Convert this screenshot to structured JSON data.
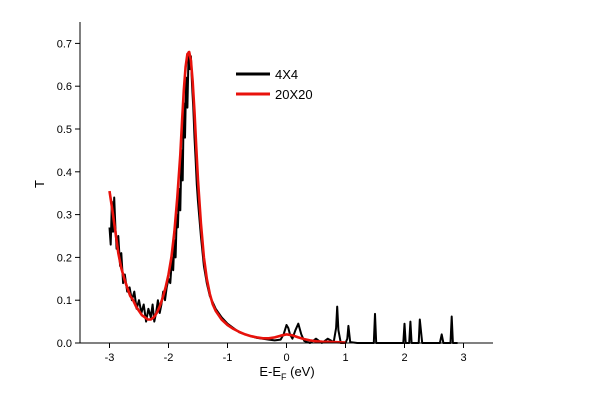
{
  "chart_data": {
    "type": "line",
    "title": "",
    "xlabel": {
      "main": "E-E",
      "sub": "F",
      "tail": " (eV)"
    },
    "ylabel": "T",
    "xlim": [
      -3.5,
      3.5
    ],
    "ylim": [
      0,
      0.75
    ],
    "xticks": [
      -3,
      -2,
      -1,
      0,
      1,
      2,
      3
    ],
    "yticks": [
      0.0,
      0.1,
      0.2,
      0.3,
      0.4,
      0.5,
      0.6,
      0.7
    ],
    "ytick_labels": [
      "0.0",
      "0.1",
      "0.2",
      "0.3",
      "0.4",
      "0.5",
      "0.6",
      "0.7"
    ],
    "grid": false,
    "legend_position": "top-right",
    "series": [
      {
        "name": "4X4",
        "color": "#000000",
        "x": [
          -3.0,
          -2.98,
          -2.96,
          -2.94,
          -2.92,
          -2.9,
          -2.88,
          -2.85,
          -2.82,
          -2.8,
          -2.77,
          -2.74,
          -2.7,
          -2.66,
          -2.62,
          -2.58,
          -2.54,
          -2.5,
          -2.46,
          -2.42,
          -2.38,
          -2.34,
          -2.3,
          -2.27,
          -2.24,
          -2.21,
          -2.18,
          -2.15,
          -2.12,
          -2.09,
          -2.06,
          -2.03,
          -2.0,
          -1.97,
          -1.94,
          -1.92,
          -1.9,
          -1.88,
          -1.86,
          -1.84,
          -1.82,
          -1.8,
          -1.78,
          -1.76,
          -1.74,
          -1.72,
          -1.7,
          -1.68,
          -1.66,
          -1.64,
          -1.62,
          -1.6,
          -1.58,
          -1.56,
          -1.54,
          -1.52,
          -1.5,
          -1.45,
          -1.4,
          -1.35,
          -1.3,
          -1.2,
          -1.1,
          -1.0,
          -0.9,
          -0.8,
          -0.7,
          -0.6,
          -0.5,
          -0.4,
          -0.3,
          -0.2,
          -0.1,
          -0.05,
          0.0,
          0.03,
          0.06,
          0.1,
          0.15,
          0.2,
          0.25,
          0.3,
          0.35,
          0.4,
          0.5,
          0.6,
          0.7,
          0.8,
          0.84,
          0.86,
          0.88,
          0.92,
          1.0,
          1.03,
          1.05,
          1.08,
          1.2,
          1.3,
          1.4,
          1.48,
          1.5,
          1.52,
          1.6,
          1.7,
          1.8,
          1.9,
          1.98,
          2.0,
          2.02,
          2.08,
          2.1,
          2.12,
          2.15,
          2.2,
          2.24,
          2.26,
          2.3,
          2.4,
          2.5,
          2.6,
          2.63,
          2.66,
          2.7,
          2.78,
          2.8,
          2.82,
          2.88,
          2.9
        ],
        "y": [
          0.27,
          0.23,
          0.33,
          0.26,
          0.34,
          0.27,
          0.22,
          0.25,
          0.18,
          0.21,
          0.14,
          0.16,
          0.12,
          0.13,
          0.1,
          0.12,
          0.08,
          0.1,
          0.07,
          0.09,
          0.05,
          0.08,
          0.06,
          0.09,
          0.05,
          0.07,
          0.1,
          0.07,
          0.09,
          0.12,
          0.1,
          0.13,
          0.15,
          0.14,
          0.2,
          0.17,
          0.24,
          0.2,
          0.3,
          0.27,
          0.36,
          0.31,
          0.45,
          0.38,
          0.56,
          0.48,
          0.62,
          0.55,
          0.68,
          0.64,
          0.67,
          0.6,
          0.55,
          0.48,
          0.43,
          0.37,
          0.33,
          0.25,
          0.18,
          0.14,
          0.11,
          0.08,
          0.06,
          0.045,
          0.035,
          0.025,
          0.02,
          0.016,
          0.012,
          0.01,
          0.008,
          0.006,
          0.008,
          0.02,
          0.042,
          0.035,
          0.02,
          0.01,
          0.03,
          0.045,
          0.02,
          0.005,
          0.002,
          0.0,
          0.01,
          0.0,
          0.01,
          0.002,
          0.035,
          0.085,
          0.03,
          0.0,
          0.0,
          0.01,
          0.04,
          0.002,
          0.0,
          0.0,
          0.0,
          0.0,
          0.068,
          0.0,
          0.0,
          0.0,
          0.0,
          0.0,
          0.0,
          0.045,
          0.0,
          0.0,
          0.05,
          0.0,
          0.0,
          0.0,
          0.0,
          0.055,
          0.0,
          0.0,
          0.0,
          0.0,
          0.02,
          0.0,
          0.0,
          0.0,
          0.062,
          0.0,
          0.0,
          0.0
        ]
      },
      {
        "name": "20X20",
        "color": "#e8120c",
        "x": [
          -3.0,
          -2.95,
          -2.9,
          -2.85,
          -2.8,
          -2.75,
          -2.7,
          -2.65,
          -2.6,
          -2.55,
          -2.5,
          -2.45,
          -2.4,
          -2.35,
          -2.3,
          -2.25,
          -2.2,
          -2.15,
          -2.1,
          -2.05,
          -2.0,
          -1.95,
          -1.9,
          -1.85,
          -1.8,
          -1.77,
          -1.74,
          -1.71,
          -1.68,
          -1.65,
          -1.62,
          -1.59,
          -1.56,
          -1.53,
          -1.5,
          -1.45,
          -1.4,
          -1.35,
          -1.3,
          -1.25,
          -1.2,
          -1.1,
          -1.0,
          -0.9,
          -0.8,
          -0.7,
          -0.6,
          -0.5,
          -0.4,
          -0.3,
          -0.2,
          -0.1,
          0.0,
          0.1,
          0.2,
          0.3,
          0.4,
          0.5,
          0.6,
          0.8,
          1.0
        ],
        "y": [
          0.355,
          0.31,
          0.26,
          0.21,
          0.175,
          0.15,
          0.13,
          0.11,
          0.1,
          0.085,
          0.075,
          0.065,
          0.06,
          0.055,
          0.055,
          0.06,
          0.07,
          0.085,
          0.105,
          0.13,
          0.16,
          0.2,
          0.26,
          0.34,
          0.44,
          0.52,
          0.59,
          0.645,
          0.675,
          0.68,
          0.66,
          0.61,
          0.54,
          0.46,
          0.38,
          0.28,
          0.2,
          0.15,
          0.115,
          0.09,
          0.075,
          0.055,
          0.042,
          0.033,
          0.026,
          0.02,
          0.016,
          0.013,
          0.011,
          0.011,
          0.013,
          0.017,
          0.02,
          0.018,
          0.013,
          0.009,
          0.006,
          0.004,
          0.003,
          0.002,
          0.001
        ]
      }
    ]
  }
}
